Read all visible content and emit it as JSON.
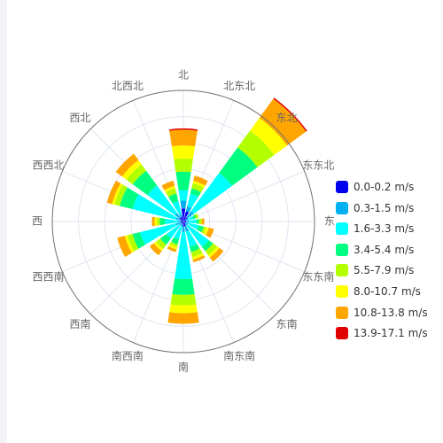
{
  "chart_data": {
    "type": "bar",
    "subtype": "wind-rose",
    "title": "",
    "directions": [
      "北",
      "北东北",
      "东北",
      "东东北",
      "东",
      "东东南",
      "东南",
      "南东南",
      "南",
      "南西南",
      "西南",
      "西西南",
      "西",
      "西西北",
      "西北",
      "北西北"
    ],
    "series": [
      {
        "name": "0.0-0.2 m/s",
        "color": "#0000ee",
        "values": [
          0.5,
          0.4,
          0.2,
          0.1,
          0.1,
          0.1,
          0.1,
          0.2,
          0.2,
          0.1,
          0.1,
          0.1,
          0.1,
          0.1,
          0.2,
          0.2
        ]
      },
      {
        "name": "0.3-1.5 m/s",
        "color": "#00b0f0",
        "values": [
          0.3,
          0.2,
          0.3,
          0.1,
          0.1,
          0.1,
          0.1,
          0.2,
          0.2,
          0.1,
          0.1,
          0.2,
          0.1,
          0.2,
          0.2,
          0.1
        ]
      },
      {
        "name": "1.6-3.3 m/s",
        "color": "#00ffff",
        "values": [
          0.4,
          0.5,
          1.8,
          0.2,
          0.3,
          0.4,
          1.0,
          0.6,
          1.8,
          0.5,
          0.6,
          1.4,
          0.5,
          1.7,
          1.3,
          0.5
        ]
      },
      {
        "name": "3.4-5.4 m/s",
        "color": "#00ff80",
        "values": [
          0.7,
          0.2,
          1.2,
          0.1,
          0.1,
          0.2,
          0.2,
          0.2,
          0.6,
          0.2,
          0.3,
          0.3,
          0.2,
          0.5,
          0.7,
          0.3
        ]
      },
      {
        "name": "5.5-7.9 m/s",
        "color": "#b3ff00",
        "values": [
          0.5,
          0.2,
          0.8,
          0.1,
          0.1,
          0.1,
          0.2,
          0.2,
          0.4,
          0.1,
          0.2,
          0.2,
          0.1,
          0.2,
          0.3,
          0.2
        ]
      },
      {
        "name": "8.0-10.7 m/s",
        "color": "#ffff00",
        "values": [
          0.5,
          0.1,
          0.6,
          0.0,
          0.0,
          0.1,
          0.1,
          0.1,
          0.3,
          0.1,
          0.1,
          0.1,
          0.1,
          0.1,
          0.2,
          0.1
        ]
      },
      {
        "name": "10.8-13.8 m/s",
        "color": "#ffa500",
        "values": [
          0.6,
          0.2,
          0.9,
          0.0,
          0.1,
          0.2,
          0.2,
          0.1,
          0.4,
          0.1,
          0.2,
          0.3,
          0.1,
          0.2,
          0.3,
          0.2
        ]
      },
      {
        "name": "13.9-17.1 m/s",
        "color": "#e00000",
        "values": [
          0.05,
          0.0,
          0.05,
          0.0,
          0.0,
          0.0,
          0.0,
          0.0,
          0.0,
          0.0,
          0.0,
          0.0,
          0.0,
          0.0,
          0.0,
          0.0
        ]
      }
    ],
    "radius_max": 5.0,
    "radius_rings": 5,
    "grid": true,
    "legend_position": "right",
    "colors": {
      "axis_ring": "#707070",
      "grid": "#e0e6f1",
      "label": "#666666"
    }
  }
}
